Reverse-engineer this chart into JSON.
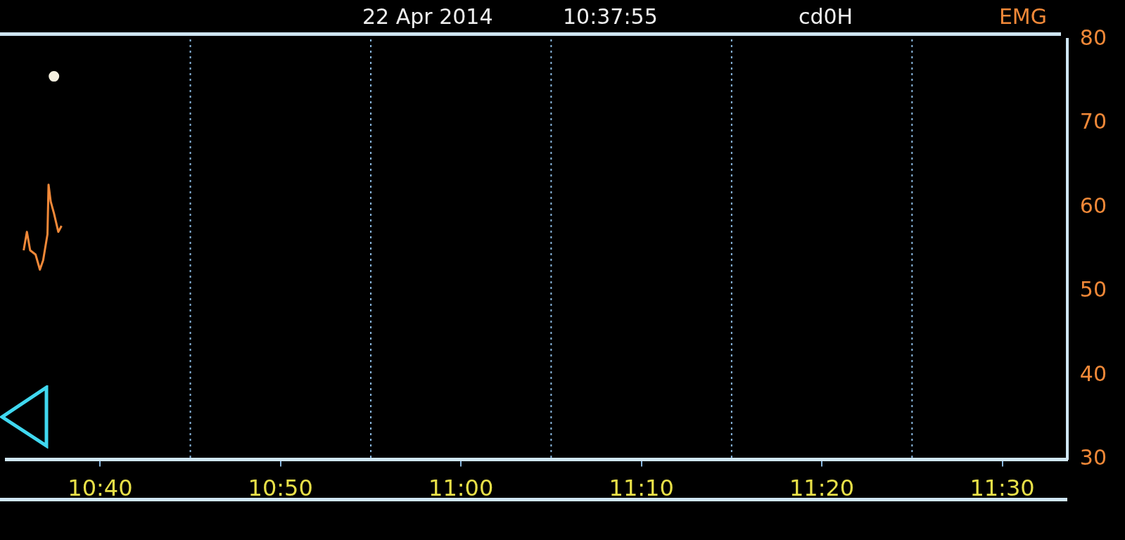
{
  "chart_data": {
    "type": "line",
    "title": "22 Apr 2014",
    "subtitle": "10:37:55",
    "annotations": [
      "cd0H"
    ],
    "xlim": [
      10.58,
      11.56
    ],
    "xticks": [
      {
        "value": 10.6667,
        "label": "10:40"
      },
      {
        "value": 10.8333,
        "label": "10:50"
      },
      {
        "value": 11.0,
        "label": "11:00"
      },
      {
        "value": 11.1667,
        "label": "11:10"
      },
      {
        "value": 11.3333,
        "label": "11:20"
      },
      {
        "value": 11.5,
        "label": "11:30"
      }
    ],
    "y2lim": [
      30,
      80
    ],
    "y2ticks": [
      30,
      40,
      50,
      60,
      70,
      80
    ],
    "legend": "top right",
    "grid": false,
    "ref_lines": [
      {
        "axis": "x",
        "value": 10.75,
        "color": "#8ab8e0",
        "line_style": "dotted"
      },
      {
        "axis": "x",
        "value": 10.9167,
        "color": "#8ab8e0",
        "line_style": "dotted"
      },
      {
        "axis": "x",
        "value": 11.0833,
        "color": "#8ab8e0",
        "line_style": "dotted"
      },
      {
        "axis": "x",
        "value": 11.25,
        "color": "#8ab8e0",
        "line_style": "dotted"
      },
      {
        "axis": "x",
        "value": 11.4167,
        "color": "#8ab8e0",
        "line_style": "dotted"
      }
    ],
    "series": [
      {
        "name": "EMG",
        "color": "#f08838",
        "axis": "y2",
        "marker": "none",
        "x": [
          10.596,
          10.599,
          10.602,
          10.607,
          10.611,
          10.614,
          10.618,
          10.619,
          10.621,
          10.624,
          10.628,
          10.631
        ],
        "values": [
          54.9,
          57.1,
          54.9,
          54.4,
          52.6,
          53.7,
          56.8,
          62.7,
          60.7,
          59.3,
          57.1,
          57.8
        ]
      },
      {
        "type": "scatter",
        "color": "#f4f0e0",
        "axis": "y2",
        "marker": "circle",
        "x": [
          10.624
        ],
        "values": [
          75.6
        ]
      }
    ]
  }
}
